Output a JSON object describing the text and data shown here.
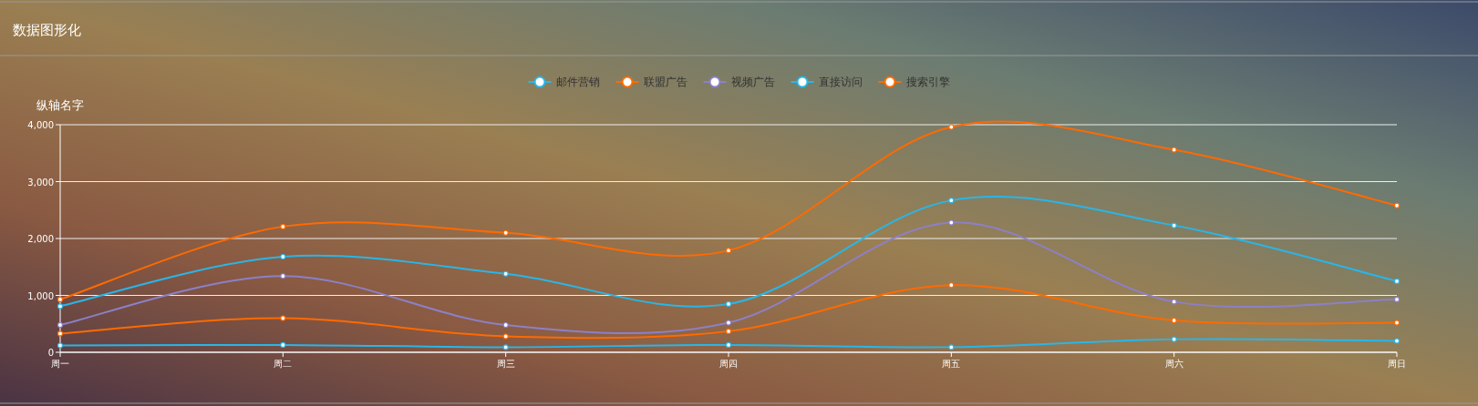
{
  "chart_data": {
    "type": "line",
    "title": "数据图形化",
    "ylabel": "纵轴名字",
    "categories": [
      "周一",
      "周二",
      "周三",
      "周四",
      "周五",
      "周六",
      "周日"
    ],
    "series": [
      {
        "name": "邮件营销",
        "color": "#29b6e8",
        "values": [
          120,
          130,
          90,
          130,
          90,
          230,
          200
        ]
      },
      {
        "name": "联盟广告",
        "color": "#ff6a00",
        "values": [
          330,
          600,
          280,
          370,
          1180,
          560,
          520
        ]
      },
      {
        "name": "视频广告",
        "color": "#8c80c8",
        "values": [
          480,
          1340,
          480,
          520,
          2280,
          890,
          930
        ]
      },
      {
        "name": "直接访问",
        "color": "#29b6e8",
        "values": [
          810,
          1680,
          1380,
          850,
          2670,
          2230,
          1250
        ]
      },
      {
        "name": "搜索引擎",
        "color": "#ff6a00",
        "values": [
          930,
          2210,
          2100,
          1790,
          3960,
          3560,
          2580
        ]
      }
    ],
    "ylim": [
      0,
      4000
    ],
    "yticks": [
      0,
      {
        "value": 1000,
        "label": "1,000"
      },
      {
        "value": 2000,
        "label": "2,000"
      },
      {
        "value": 3000,
        "label": "3,000"
      },
      {
        "value": 4000,
        "label": "4,000"
      }
    ],
    "grid": "y",
    "legend": "top",
    "marker": "circle",
    "line_style": "solid"
  }
}
